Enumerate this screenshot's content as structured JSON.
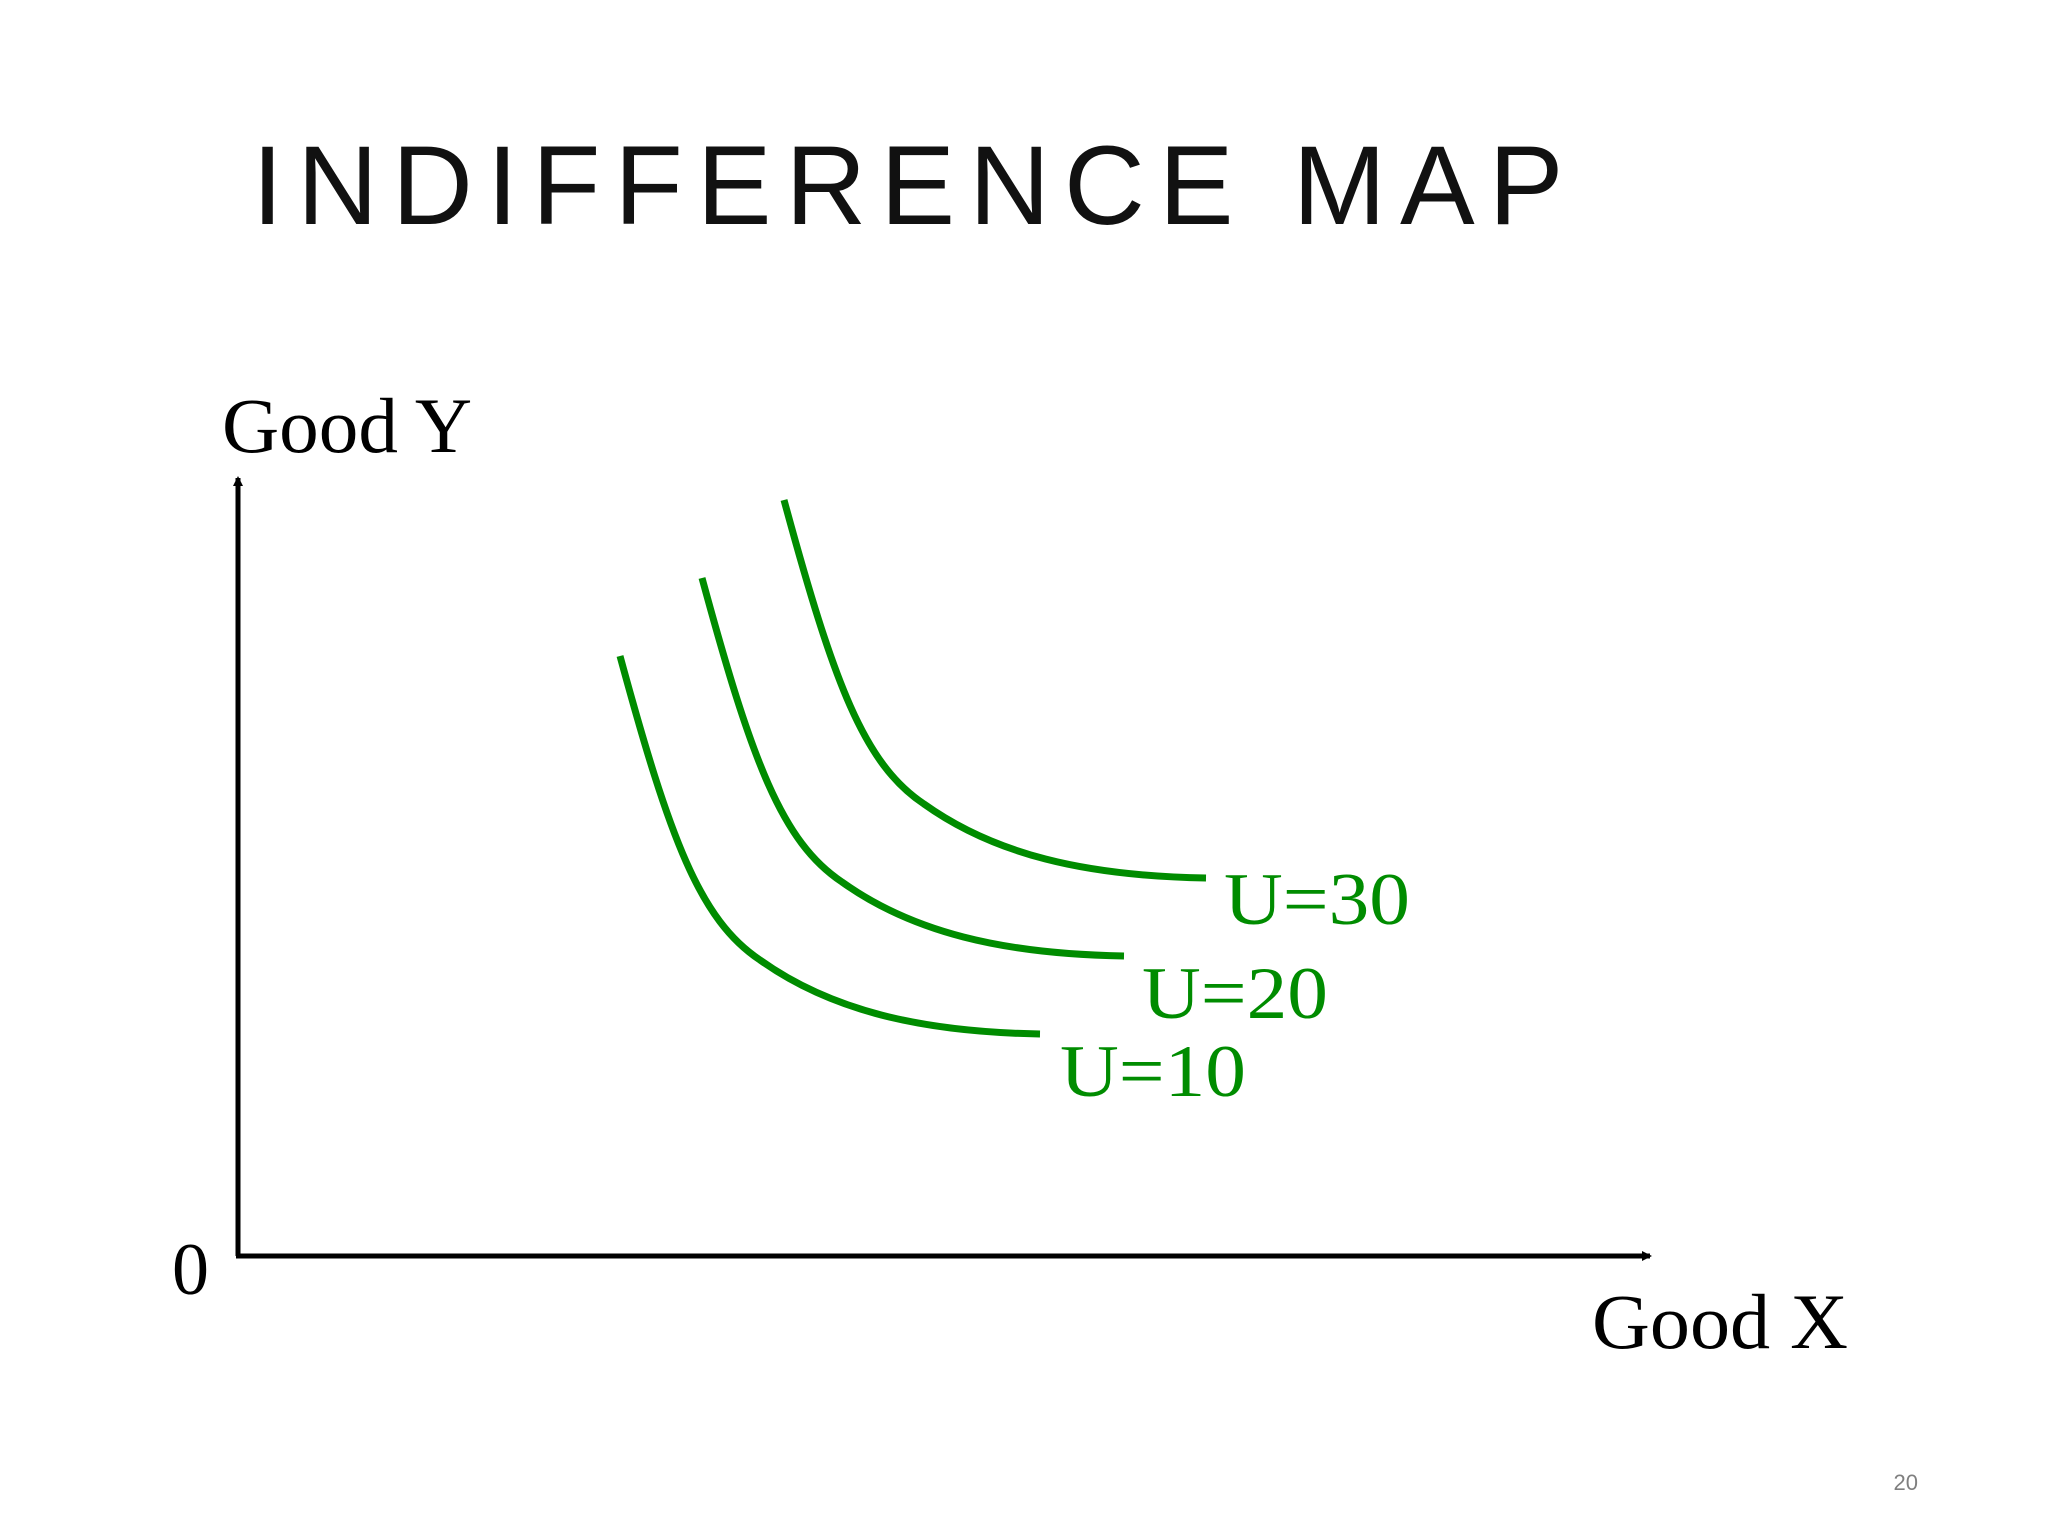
{
  "slide": {
    "title": "INDIFFERENCE MAP",
    "page_number": "20"
  },
  "axes": {
    "y_label": "Good Y",
    "x_label": "Good X",
    "origin_label": "0"
  },
  "colors": {
    "axis": "#000000",
    "curve": "#008c00",
    "title": "#111111"
  },
  "curves": [
    {
      "label": "U=10"
    },
    {
      "label": "U=20"
    },
    {
      "label": "U=30"
    }
  ]
}
